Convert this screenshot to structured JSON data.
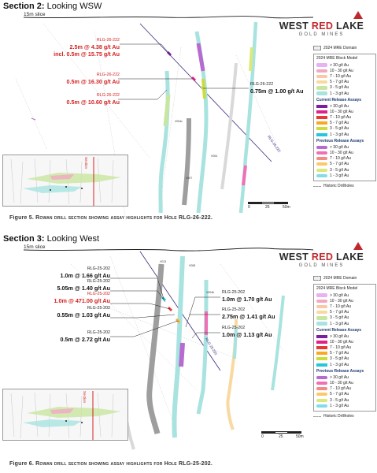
{
  "figure_top": {
    "title_bold": "Section 2:",
    "title_rest": " Looking WSW",
    "slice": "15m slice",
    "caption_prefix": "Figure 5.",
    "caption_body": " Rowan drill section showing assay highlights for Hole RLG-26-222.",
    "callouts": [
      {
        "hole": "RLG-26-222",
        "value": "2.5m @ 4.38 g/t Au",
        "red": true
      },
      {
        "hole": "",
        "value": "incl. 0.5m @ 15.75 g/t Au",
        "red": true
      },
      {
        "hole": "RLG-26-222",
        "value": "0.5m @ 16.30 g/t Au",
        "red": true
      },
      {
        "hole": "RLG-26-222",
        "value": "0.5m @ 10.60 g/t Au",
        "red": true
      },
      {
        "hole": "RLG-26-222",
        "value": "0.75m @ 1.00 g/t Au",
        "red": false
      }
    ],
    "drillhole_label": "RLG-26-222",
    "vein_labels": [
      "V004c",
      "V004",
      "V007"
    ],
    "scale": {
      "labels": [
        "0",
        "25",
        "50m"
      ]
    }
  },
  "figure_bottom": {
    "title_bold": "Section 3:",
    "title_rest": " Looking West",
    "slice": "15m slice",
    "caption_prefix": "Figure 6.",
    "caption_body": " Rowan drill section showing assay highlights for Hole RLG-25-202.",
    "callouts_left": [
      {
        "hole": "RLG-25-202",
        "value": "1.0m @ 1.66 g/t Au",
        "red": false
      },
      {
        "hole": "RLG-25-202",
        "value": "5.05m @ 1.40 g/t Au",
        "red": false
      },
      {
        "hole": "RLG-25-202",
        "value": "1.0m @ 471.00 g/t Au",
        "red": true
      },
      {
        "hole": "RLG-25-202",
        "value": "0.55m @ 1.03 g/t Au",
        "red": false
      },
      {
        "hole": "RLG-25-202",
        "value": "0.5m @ 2.72 g/t Au",
        "red": false
      }
    ],
    "callouts_right": [
      {
        "hole": "RLG-25-202",
        "value": "1.0m @ 1.70 g/t Au",
        "red": false
      },
      {
        "hole": "RLG-25-202",
        "value": "2.75m @ 1.41 g/t Au",
        "red": false
      },
      {
        "hole": "RLG-25-202",
        "value": "1.0m @ 1.13 g/t Au",
        "red": false
      }
    ],
    "drillhole_label": "RLG-25-202",
    "vein_labels": [
      "V013",
      "V008",
      "V004b"
    ],
    "scale": {
      "labels": [
        "0",
        "25",
        "50m"
      ]
    }
  },
  "logo": {
    "word1": "WEST ",
    "word2": "RED",
    "word3": " LAKE",
    "sub": "GOLD MINES"
  },
  "legend": {
    "domain_label": "2024 MRE Domain",
    "block_model_title": "2024 MRE Block Model",
    "block_model": [
      {
        "label": "> 30 g/t Au",
        "color": "#e7b2f2"
      },
      {
        "label": "10 - 30 g/t Au",
        "color": "#f4a7c3"
      },
      {
        "label": "7 - 10 g/t Au",
        "color": "#f7c9a6"
      },
      {
        "label": "5 - 7 g/t Au",
        "color": "#f9d9a0"
      },
      {
        "label": "3 - 5 g/t Au",
        "color": "#c8e6a0"
      },
      {
        "label": "1 - 3 g/t Au",
        "color": "#a8e3e0"
      }
    ],
    "current_title": "Current Release Assays",
    "current": [
      {
        "label": "> 30 g/t Au",
        "color": "#7a1fa2"
      },
      {
        "label": "10 - 30 g/t Au",
        "color": "#e0218a"
      },
      {
        "label": "7 - 10 g/t Au",
        "color": "#e53935"
      },
      {
        "label": "5 - 7 g/t Au",
        "color": "#f9a825"
      },
      {
        "label": "3 - 5 g/t Au",
        "color": "#cddc39"
      },
      {
        "label": "1 - 3 g/t Au",
        "color": "#26c6da"
      }
    ],
    "previous_title": "Previous Release Assays",
    "previous": [
      {
        "label": "> 30 g/t Au",
        "color": "#b76ad0"
      },
      {
        "label": "10 - 30 g/t Au",
        "color": "#f06fb5"
      },
      {
        "label": "7 - 10 g/t Au",
        "color": "#f28b82"
      },
      {
        "label": "5 - 7 g/t Au",
        "color": "#fbc96b"
      },
      {
        "label": "3 - 5 g/t Au",
        "color": "#dbe87a"
      },
      {
        "label": "1 - 3 g/t Au",
        "color": "#84dde6"
      }
    ],
    "historic_label": "Historic Drillholes"
  },
  "inset_label": "Section"
}
